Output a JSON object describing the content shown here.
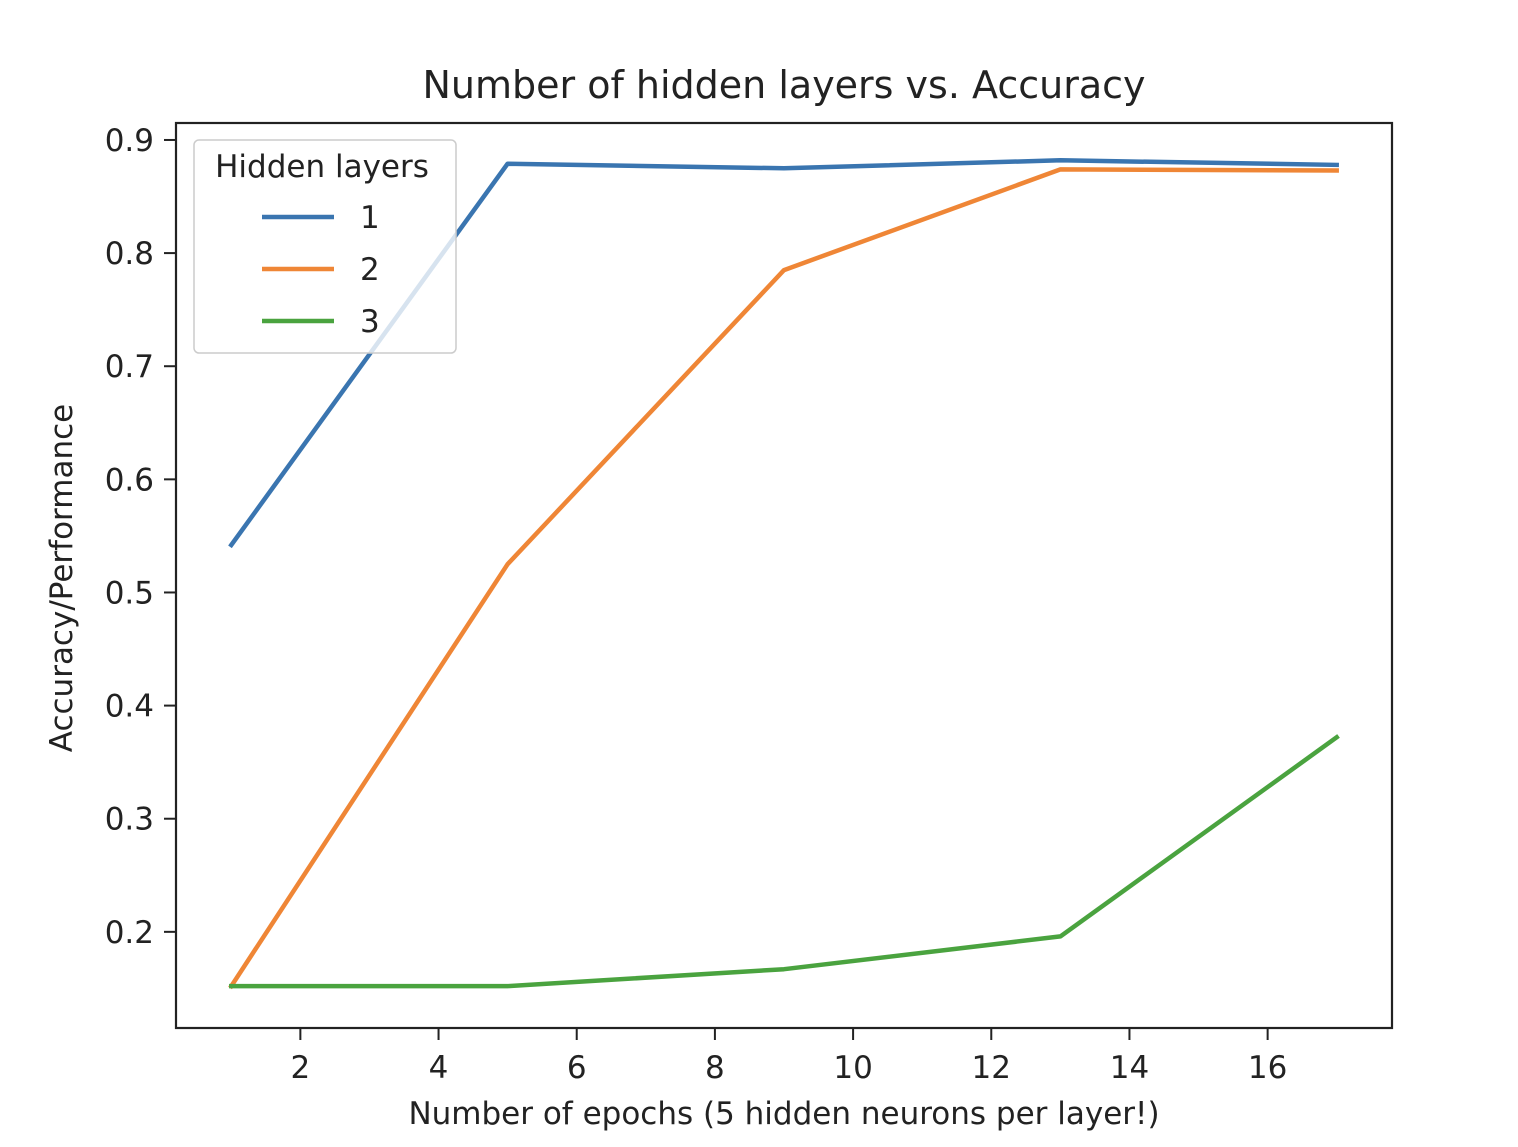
{
  "chart_data": {
    "type": "line",
    "title": "Number of hidden layers vs. Accuracy",
    "xlabel": "Number of epochs (5 hidden neurons per layer!)",
    "ylabel": "Accuracy/Performance",
    "xlim": [
      0.2,
      17.8
    ],
    "ylim": [
      0.115,
      0.915
    ],
    "xticks": [
      2,
      4,
      6,
      8,
      10,
      12,
      14,
      16
    ],
    "xtick_labels": [
      "2",
      "4",
      "6",
      "8",
      "10",
      "12",
      "14",
      "16"
    ],
    "yticks": [
      0.2,
      0.3,
      0.4,
      0.5,
      0.6,
      0.7,
      0.8,
      0.9
    ],
    "ytick_labels": [
      "0.2",
      "0.3",
      "0.4",
      "0.5",
      "0.6",
      "0.7",
      "0.8",
      "0.9"
    ],
    "grid": false,
    "legend": {
      "title": "Hidden layers",
      "placement": "top-left"
    },
    "x": [
      1,
      5,
      9,
      13,
      17
    ],
    "series": [
      {
        "name": "1",
        "color": "#3a75b0",
        "values": [
          0.542,
          0.879,
          0.875,
          0.882,
          0.878
        ]
      },
      {
        "name": "2",
        "color": "#ef8636",
        "values": [
          0.152,
          0.525,
          0.785,
          0.874,
          0.873
        ]
      },
      {
        "name": "3",
        "color": "#4aa33f",
        "values": [
          0.152,
          0.152,
          0.167,
          0.196,
          0.372
        ]
      }
    ]
  }
}
